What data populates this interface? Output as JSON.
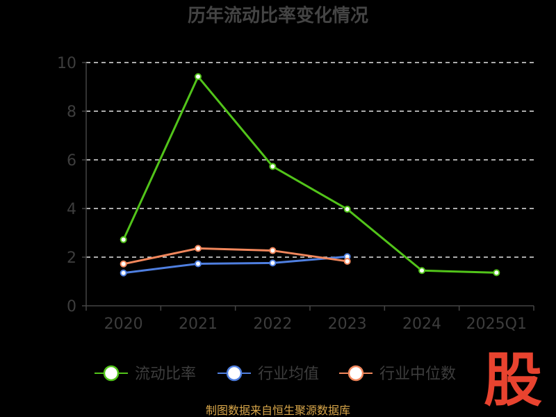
{
  "title": "历年流动比率变化情况",
  "source": "制图数据来自恒生聚源数据库",
  "logo_text": "股",
  "chart_data": {
    "type": "line",
    "title": "历年流动比率变化情况",
    "xlabel": "",
    "ylabel": "",
    "categories": [
      "2020",
      "2021",
      "2022",
      "2023",
      "2024",
      "2025Q1"
    ],
    "ylim": [
      0,
      10
    ],
    "yticks": [
      0,
      2,
      4,
      6,
      8,
      10
    ],
    "grid": true,
    "legend": "bottom",
    "series": [
      {
        "name": "流动比率",
        "color": "#52c41a",
        "values": [
          2.72,
          9.42,
          5.73,
          3.97,
          1.45,
          1.36
        ]
      },
      {
        "name": "行业均值",
        "color": "#4f7fe0",
        "values": [
          1.35,
          1.73,
          1.76,
          2.02,
          null,
          null
        ]
      },
      {
        "name": "行业中位数",
        "color": "#f2875c",
        "values": [
          1.72,
          2.36,
          2.27,
          1.83,
          null,
          null
        ]
      }
    ]
  }
}
